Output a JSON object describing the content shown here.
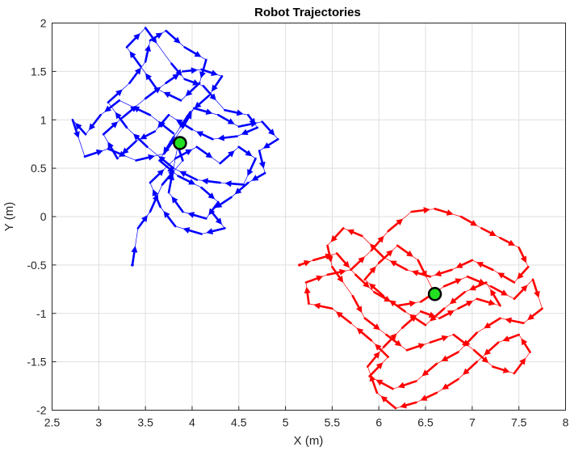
{
  "chart_data": {
    "type": "line",
    "title": "Robot Trajectories",
    "xlabel": "X (m)",
    "ylabel": "Y (m)",
    "xlim": [
      2.5,
      8
    ],
    "ylim": [
      -2,
      2
    ],
    "xticks": [
      2.5,
      3,
      3.5,
      4,
      4.5,
      5,
      5.5,
      6,
      6.5,
      7,
      7.5,
      8
    ],
    "yticks": [
      -2,
      -1.5,
      -1,
      -0.5,
      0,
      0.5,
      1,
      1.5,
      2
    ],
    "xtick_labels": [
      "2.5",
      "3",
      "3.5",
      "4",
      "4.5",
      "5",
      "5.5",
      "6",
      "6.5",
      "7",
      "7.5",
      "8"
    ],
    "ytick_labels": [
      "-2",
      "-1.5",
      "-1",
      "-0.5",
      "0",
      "0.5",
      "1",
      "1.5",
      "2"
    ],
    "grid": true,
    "series": [
      {
        "color": "#0000ff",
        "goal": [
          3.87,
          0.76
        ],
        "start": [
          3.36,
          -0.5
        ],
        "points": [
          [
            3.36,
            -0.5
          ],
          [
            3.42,
            -0.12
          ],
          [
            3.55,
            0.05
          ],
          [
            3.68,
            0.33
          ],
          [
            3.9,
            0.58
          ],
          [
            3.8,
            0.86
          ],
          [
            3.55,
            1.05
          ],
          [
            3.22,
            1.2
          ],
          [
            3.02,
            1.05
          ],
          [
            2.86,
            0.85
          ],
          [
            2.72,
            1.0
          ],
          [
            2.85,
            0.62
          ],
          [
            3.1,
            0.7
          ],
          [
            3.4,
            0.58
          ],
          [
            3.7,
            0.65
          ],
          [
            3.9,
            0.92
          ],
          [
            4.02,
            1.12
          ],
          [
            4.28,
            1.05
          ],
          [
            4.5,
            0.93
          ],
          [
            4.75,
            0.98
          ],
          [
            4.92,
            0.8
          ],
          [
            4.72,
            0.68
          ],
          [
            4.78,
            0.45
          ],
          [
            4.6,
            0.35
          ],
          [
            4.42,
            0.2
          ],
          [
            4.2,
            0.06
          ],
          [
            4.35,
            -0.12
          ],
          [
            4.1,
            -0.18
          ],
          [
            3.82,
            -0.1
          ],
          [
            3.66,
            0.1
          ],
          [
            3.55,
            0.35
          ],
          [
            3.82,
            0.6
          ],
          [
            4.05,
            0.72
          ],
          [
            4.3,
            0.55
          ],
          [
            4.5,
            0.72
          ],
          [
            4.68,
            0.6
          ],
          [
            4.55,
            0.33
          ],
          [
            4.3,
            0.35
          ],
          [
            4.05,
            0.38
          ],
          [
            3.8,
            0.5
          ],
          [
            3.52,
            0.72
          ],
          [
            3.3,
            0.92
          ],
          [
            3.1,
            1.18
          ],
          [
            3.33,
            1.38
          ],
          [
            3.5,
            1.6
          ],
          [
            3.55,
            1.82
          ],
          [
            3.72,
            1.92
          ],
          [
            3.92,
            1.75
          ],
          [
            4.15,
            1.62
          ],
          [
            4.08,
            1.38
          ],
          [
            3.88,
            1.2
          ],
          [
            3.62,
            1.32
          ],
          [
            3.45,
            1.55
          ],
          [
            3.3,
            1.75
          ],
          [
            3.5,
            1.95
          ],
          [
            3.78,
            1.58
          ],
          [
            3.92,
            1.42
          ],
          [
            4.12,
            1.35
          ],
          [
            4.35,
            1.1
          ],
          [
            4.6,
            1.05
          ],
          [
            4.7,
            0.92
          ],
          [
            4.48,
            0.83
          ],
          [
            4.22,
            0.8
          ],
          [
            4.0,
            0.9
          ],
          [
            3.75,
            1.05
          ],
          [
            3.6,
            0.88
          ],
          [
            3.4,
            0.78
          ],
          [
            3.2,
            0.6
          ],
          [
            3.05,
            0.85
          ],
          [
            3.25,
            1.02
          ],
          [
            3.5,
            1.22
          ],
          [
            3.72,
            1.38
          ],
          [
            3.9,
            1.5
          ],
          [
            4.1,
            1.52
          ],
          [
            4.32,
            1.45
          ],
          [
            4.18,
            1.25
          ],
          [
            3.98,
            1.08
          ],
          [
            3.8,
            0.82
          ],
          [
            3.65,
            0.58
          ],
          [
            3.85,
            0.42
          ],
          [
            4.1,
            0.3
          ],
          [
            4.28,
            0.15
          ],
          [
            4.15,
            -0.02
          ],
          [
            3.9,
            0.05
          ],
          [
            3.75,
            0.25
          ],
          [
            3.85,
            0.75
          ]
        ]
      },
      {
        "color": "#ff0000",
        "goal": [
          6.6,
          -0.8
        ],
        "start": [
          5.15,
          -0.5
        ],
        "points": [
          [
            5.15,
            -0.5
          ],
          [
            5.3,
            -0.45
          ],
          [
            5.55,
            -0.38
          ],
          [
            5.75,
            -0.6
          ],
          [
            5.95,
            -0.78
          ],
          [
            6.2,
            -0.92
          ],
          [
            6.45,
            -0.88
          ],
          [
            6.7,
            -0.72
          ],
          [
            6.95,
            -0.62
          ],
          [
            7.2,
            -0.72
          ],
          [
            7.45,
            -0.85
          ],
          [
            7.65,
            -0.65
          ],
          [
            7.75,
            -0.95
          ],
          [
            7.55,
            -1.1
          ],
          [
            7.3,
            -1.05
          ],
          [
            7.05,
            -1.2
          ],
          [
            6.85,
            -1.4
          ],
          [
            6.62,
            -1.52
          ],
          [
            6.4,
            -1.7
          ],
          [
            6.15,
            -1.78
          ],
          [
            5.9,
            -1.65
          ],
          [
            6.1,
            -1.45
          ],
          [
            5.92,
            -1.28
          ],
          [
            5.7,
            -1.1
          ],
          [
            5.5,
            -0.95
          ],
          [
            5.25,
            -0.9
          ],
          [
            5.22,
            -0.68
          ],
          [
            5.45,
            -0.6
          ],
          [
            5.7,
            -0.55
          ],
          [
            5.92,
            -0.35
          ],
          [
            6.1,
            -0.15
          ],
          [
            6.35,
            0.05
          ],
          [
            6.6,
            0.08
          ],
          [
            6.88,
            0.0
          ],
          [
            7.1,
            -0.12
          ],
          [
            7.3,
            -0.22
          ],
          [
            7.5,
            -0.32
          ],
          [
            7.6,
            -0.52
          ],
          [
            7.45,
            -0.68
          ],
          [
            7.22,
            -0.55
          ],
          [
            7.0,
            -0.45
          ],
          [
            6.78,
            -0.55
          ],
          [
            6.55,
            -0.62
          ],
          [
            6.3,
            -0.55
          ],
          [
            6.05,
            -0.42
          ],
          [
            5.82,
            -0.2
          ],
          [
            5.62,
            -0.12
          ],
          [
            5.45,
            -0.3
          ],
          [
            5.5,
            -0.52
          ],
          [
            5.72,
            -0.82
          ],
          [
            5.85,
            -1.05
          ],
          [
            6.08,
            -1.22
          ],
          [
            6.3,
            -1.38
          ],
          [
            6.55,
            -1.3
          ],
          [
            6.8,
            -1.22
          ],
          [
            7.02,
            -1.38
          ],
          [
            7.22,
            -1.55
          ],
          [
            7.45,
            -1.62
          ],
          [
            7.62,
            -1.4
          ],
          [
            7.5,
            -1.22
          ],
          [
            7.28,
            -1.3
          ],
          [
            7.05,
            -1.5
          ],
          [
            6.85,
            -1.68
          ],
          [
            6.62,
            -1.82
          ],
          [
            6.4,
            -1.92
          ],
          [
            6.18,
            -1.98
          ],
          [
            5.98,
            -1.82
          ],
          [
            5.88,
            -1.55
          ],
          [
            6.05,
            -1.35
          ],
          [
            6.25,
            -1.15
          ],
          [
            6.45,
            -0.98
          ],
          [
            6.65,
            -1.05
          ],
          [
            6.85,
            -0.95
          ],
          [
            7.05,
            -0.85
          ],
          [
            7.3,
            -0.92
          ],
          [
            7.15,
            -0.68
          ],
          [
            6.92,
            -0.78
          ],
          [
            6.7,
            -0.95
          ],
          [
            6.5,
            -1.12
          ],
          [
            6.28,
            -0.98
          ],
          [
            6.05,
            -0.82
          ],
          [
            5.85,
            -0.65
          ],
          [
            6.0,
            -0.48
          ],
          [
            6.2,
            -0.3
          ],
          [
            6.42,
            -0.45
          ],
          [
            6.6,
            -0.8
          ]
        ]
      }
    ]
  }
}
